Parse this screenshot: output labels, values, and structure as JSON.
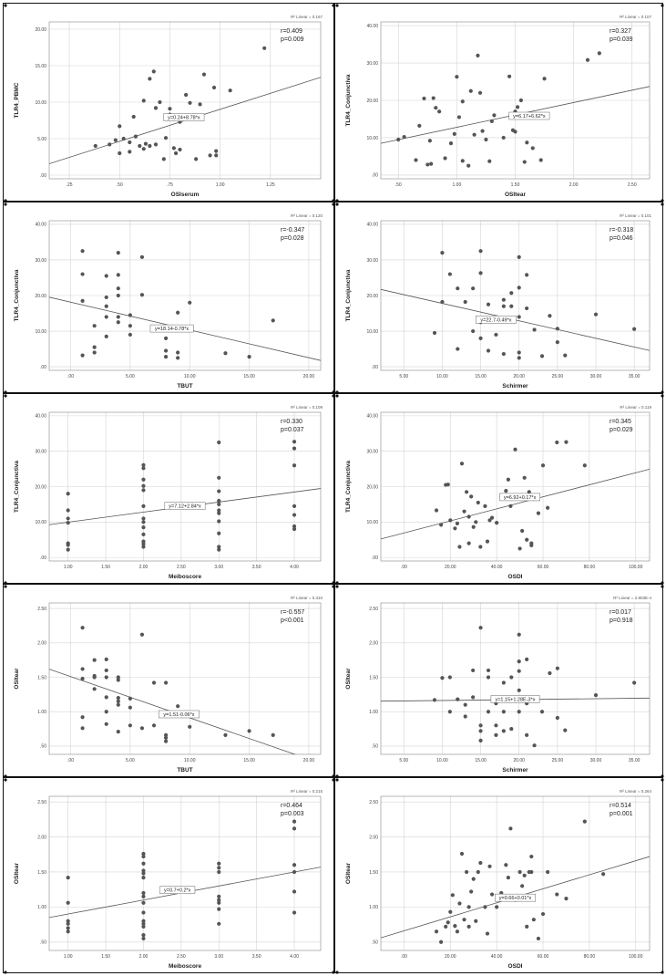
{
  "chart_data": [
    {
      "type": "scatter",
      "xlabel": "OSIserum",
      "ylabel": "TLR4_PBMC",
      "xlim": [
        0.15,
        1.5
      ],
      "ylim": [
        -0.5,
        21
      ],
      "xticks": [
        0.25,
        0.5,
        0.75,
        1.0,
        1.25
      ],
      "xtick_labels": [
        ".25",
        ".50",
        ".75",
        "1.00",
        "1.25"
      ],
      "yticks": [
        0,
        5,
        10,
        15,
        20
      ],
      "ytick_labels": [
        ".00",
        "5.00",
        "10.00",
        "15.00",
        "20.00"
      ],
      "r2_label": "R² Linear = 0.167",
      "stat_r": "r=0.409",
      "stat_p": "p=0.009",
      "equation": "y=0.24+8.78*x",
      "fit": [
        0.24,
        8.78
      ],
      "eq_at": [
        0.82,
        7.8
      ],
      "x": [
        0.38,
        0.45,
        0.48,
        0.5,
        0.5,
        0.52,
        0.55,
        0.55,
        0.57,
        0.58,
        0.6,
        0.62,
        0.62,
        0.63,
        0.65,
        0.65,
        0.67,
        0.68,
        0.68,
        0.7,
        0.72,
        0.73,
        0.75,
        0.75,
        0.77,
        0.78,
        0.8,
        0.8,
        0.82,
        0.83,
        0.85,
        0.88,
        0.9,
        0.92,
        0.95,
        0.97,
        0.98,
        0.98,
        1.05,
        1.22
      ],
      "y": [
        4.0,
        4.2,
        4.8,
        3.0,
        6.7,
        5.0,
        4.5,
        3.2,
        8.0,
        5.3,
        4.0,
        10.2,
        3.6,
        4.3,
        13.2,
        4.0,
        14.2,
        4.2,
        9.2,
        10.0,
        2.2,
        5.1,
        9.1,
        8.3,
        3.7,
        3.0,
        7.3,
        3.5,
        8.0,
        11.0,
        9.9,
        2.2,
        9.7,
        13.8,
        2.7,
        12.0,
        2.7,
        3.3,
        11.6,
        17.4
      ]
    },
    {
      "type": "scatter",
      "xlabel": "OSItear",
      "ylabel": "TLR4_Conjunctiva",
      "xlim": [
        0.35,
        2.65
      ],
      "ylim": [
        -1,
        41
      ],
      "xticks": [
        0.5,
        1.0,
        1.5,
        2.0,
        2.5
      ],
      "xtick_labels": [
        ".50",
        "1.00",
        "1.50",
        "2.00",
        "2.50"
      ],
      "yticks": [
        0,
        10,
        20,
        30,
        40
      ],
      "ytick_labels": [
        ".00",
        "10.00",
        "20.00",
        "30.00",
        "40.00"
      ],
      "r2_label": "R² Linear = 0.107",
      "stat_r": "r=0.327",
      "stat_p": "p=0.039",
      "equation": "y=6.17+6.62*x",
      "fit": [
        6.17,
        6.62
      ],
      "eq_at": [
        1.62,
        15.6
      ],
      "x": [
        0.5,
        0.55,
        0.65,
        0.68,
        0.72,
        0.75,
        0.77,
        0.78,
        0.8,
        0.82,
        0.85,
        0.9,
        0.95,
        0.98,
        1.0,
        1.02,
        1.05,
        1.05,
        1.1,
        1.12,
        1.15,
        1.18,
        1.2,
        1.22,
        1.25,
        1.28,
        1.3,
        1.32,
        1.4,
        1.45,
        1.48,
        1.5,
        1.5,
        1.52,
        1.55,
        1.58,
        1.6,
        1.65,
        1.72,
        1.75,
        2.12,
        2.22
      ],
      "y": [
        9.5,
        10.2,
        4.0,
        13.2,
        20.5,
        2.8,
        9.2,
        3.0,
        20.6,
        18.0,
        17.0,
        4.5,
        8.5,
        11.0,
        26.3,
        15.5,
        3.8,
        19.7,
        2.5,
        22.5,
        10.8,
        32.0,
        22.0,
        11.8,
        9.5,
        3.7,
        14.4,
        16.0,
        10.0,
        26.4,
        12.0,
        11.6,
        17.0,
        18.2,
        20.0,
        3.5,
        8.7,
        7.2,
        4.0,
        25.8,
        30.8,
        32.6
      ]
    },
    {
      "type": "scatter",
      "xlabel": "TBUT",
      "ylabel": "TLR4_Conjunctiva",
      "xlim": [
        -1.8,
        21
      ],
      "ylim": [
        -1,
        41
      ],
      "xticks": [
        0,
        5,
        10,
        15,
        20
      ],
      "xtick_labels": [
        ".00",
        "5.00",
        "10.00",
        "15.00",
        "20.00"
      ],
      "yticks": [
        0,
        10,
        20,
        30,
        40
      ],
      "ytick_labels": [
        ".00",
        "10.00",
        "20.00",
        "30.00",
        "40.00"
      ],
      "r2_label": "R² Linear = 0.120",
      "stat_r": "r=-0.347",
      "stat_p": "p=0.028",
      "equation": "y=18.14-0.78*x",
      "fit": [
        18.14,
        -0.78
      ],
      "eq_at": [
        8.5,
        10.5
      ],
      "x": [
        1,
        1,
        1,
        1,
        2,
        2,
        2,
        3,
        3,
        3,
        3,
        3,
        4,
        4,
        4,
        4,
        4,
        4,
        5,
        5,
        5,
        6,
        6,
        7,
        8,
        8,
        8,
        8,
        9,
        9,
        9,
        10,
        10,
        13,
        15,
        17
      ],
      "y": [
        32.5,
        26.0,
        18.5,
        3.2,
        5.5,
        4.0,
        11.5,
        25.5,
        19.5,
        17.0,
        14.0,
        8.5,
        32.0,
        25.8,
        22.0,
        20.0,
        14.0,
        12.5,
        14.5,
        11.5,
        9.0,
        30.8,
        20.2,
        10.5,
        10.4,
        8.0,
        4.5,
        2.8,
        15.2,
        4.0,
        2.5,
        18.0,
        10.7,
        3.8,
        2.8,
        13.0
      ]
    },
    {
      "type": "scatter",
      "xlabel": "Schirmer",
      "ylabel": "TLR4_Conjunctiva",
      "xlim": [
        2,
        37
      ],
      "ylim": [
        -1,
        41
      ],
      "xticks": [
        5,
        10,
        15,
        20,
        25,
        30,
        35
      ],
      "xtick_labels": [
        "5.00",
        "10.00",
        "15.00",
        "20.00",
        "25.00",
        "30.00",
        "35.00"
      ],
      "yticks": [
        0,
        10,
        20,
        30,
        40
      ],
      "ytick_labels": [
        ".00",
        "10.00",
        "20.00",
        "30.00",
        "40.00"
      ],
      "r2_label": "R² Linear = 0.101",
      "stat_r": "r=-0.318",
      "stat_p": "p=0.046",
      "equation": "y=22.7-0.49*x",
      "fit": [
        22.7,
        -0.49
      ],
      "eq_at": [
        17,
        13
      ],
      "x": [
        9,
        10,
        10,
        11,
        12,
        12,
        13,
        14,
        14,
        15,
        15,
        15,
        15,
        15,
        16,
        16,
        17,
        17,
        18,
        18,
        18,
        19,
        19,
        20,
        20,
        20,
        20,
        20,
        21,
        21,
        22,
        23,
        24,
        25,
        25,
        26,
        30,
        35
      ],
      "y": [
        9.5,
        32.0,
        18.2,
        26.0,
        22.0,
        5.0,
        18.2,
        10.0,
        22.0,
        32.5,
        26.3,
        13.0,
        12.5,
        8.0,
        4.5,
        17.5,
        14.0,
        9.0,
        17.0,
        3.6,
        18.8,
        17.0,
        20.7,
        2.5,
        4.0,
        14.0,
        22.2,
        30.8,
        16.4,
        25.8,
        10.4,
        3.0,
        14.3,
        10.7,
        6.9,
        3.2,
        14.7,
        10.6
      ]
    },
    {
      "type": "scatter",
      "xlabel": "Meiboscore",
      "ylabel": "TLR4_Conjunctiva",
      "xlim": [
        0.75,
        4.35
      ],
      "ylim": [
        -1,
        41
      ],
      "xticks": [
        1.0,
        1.5,
        2.0,
        2.5,
        3.0,
        3.5,
        4.0
      ],
      "xtick_labels": [
        "1.00",
        "1.50",
        "2.00",
        "2.50",
        "3.00",
        "3.50",
        "4.00"
      ],
      "yticks": [
        0,
        10,
        20,
        30,
        40
      ],
      "ytick_labels": [
        ".00",
        "10.00",
        "20.00",
        "30.00",
        "40.00"
      ],
      "r2_label": "R² Linear = 0.109",
      "stat_r": "r=0.330",
      "stat_p": "p=0.037",
      "equation": "y=7.12+2.84*x",
      "fit": [
        7.12,
        2.84
      ],
      "eq_at": [
        2.55,
        14.3
      ],
      "x": [
        1,
        1,
        1,
        1,
        1,
        1,
        1,
        2,
        2,
        2,
        2,
        2,
        2,
        2,
        2,
        2,
        2,
        2,
        2,
        2,
        3,
        3,
        3,
        3,
        3,
        3,
        3,
        3,
        3,
        3,
        3,
        4,
        4,
        4,
        4,
        4,
        4,
        4
      ],
      "y": [
        18.0,
        13.3,
        11.0,
        9.8,
        4.0,
        3.5,
        2.2,
        26.1,
        25.2,
        22.0,
        20.2,
        19.0,
        14.5,
        11.0,
        10.0,
        8.5,
        6.5,
        4.5,
        3.8,
        3.0,
        32.5,
        22.5,
        18.7,
        16.0,
        15.0,
        13.3,
        12.5,
        10.2,
        6.8,
        3.0,
        2.2,
        32.7,
        30.8,
        26.0,
        14.5,
        12.0,
        8.0,
        8.8
      ]
    },
    {
      "type": "scatter",
      "xlabel": "OSDI",
      "ylabel": "TLR4_Conjunctiva",
      "xlim": [
        -10,
        106
      ],
      "ylim": [
        -1,
        41
      ],
      "xticks": [
        0,
        20,
        40,
        60,
        80,
        100
      ],
      "xtick_labels": [
        ".00",
        "20.00",
        "40.00",
        "60.00",
        "80.00",
        "100.00"
      ],
      "yticks": [
        0,
        10,
        20,
        30,
        40
      ],
      "ytick_labels": [
        ".00",
        "10.00",
        "20.00",
        "30.00",
        "40.00"
      ],
      "r2_label": "R² Linear = 0.119",
      "stat_r": "r=0.345",
      "stat_p": "p=0.029",
      "equation": "y=6.92+0.17*x",
      "fit": [
        6.92,
        0.17
      ],
      "eq_at": [
        50,
        16.8
      ],
      "x": [
        14,
        16,
        18,
        19,
        20,
        22,
        23,
        24,
        25,
        26,
        27,
        28,
        28,
        29,
        30,
        31,
        32,
        33,
        35,
        36,
        37,
        38,
        40,
        42,
        44,
        45,
        46,
        48,
        50,
        51,
        52,
        53,
        54,
        55,
        55,
        56,
        58,
        60,
        62,
        66,
        70,
        78
      ],
      "y": [
        13.3,
        9.2,
        20.5,
        20.6,
        10.5,
        8.2,
        9.6,
        3.0,
        26.5,
        13.0,
        18.5,
        11.5,
        4.0,
        17.2,
        8.6,
        10.0,
        15.5,
        3.0,
        14.5,
        4.5,
        10.5,
        11.2,
        9.8,
        17.0,
        18.8,
        22.0,
        14.5,
        30.5,
        2.5,
        7.5,
        22.5,
        5.0,
        18.5,
        3.4,
        4.0,
        16.5,
        12.5,
        26.0,
        14.0,
        32.5,
        32.6,
        26.0
      ]
    },
    {
      "type": "scatter",
      "xlabel": "TBUT",
      "ylabel": "OSItear",
      "xlim": [
        -1.8,
        21
      ],
      "ylim": [
        0.38,
        2.58
      ],
      "xticks": [
        0,
        5,
        10,
        15,
        20
      ],
      "xtick_labels": [
        ".00",
        "5.00",
        "10.00",
        "15.00",
        "20.00"
      ],
      "yticks": [
        0.5,
        1.0,
        1.5,
        2.0,
        2.5
      ],
      "ytick_labels": [
        ".50",
        "1.00",
        "1.50",
        "2.00",
        "2.50"
      ],
      "r2_label": "R² Linear = 0.310",
      "stat_r": "r=-0.557",
      "stat_p": "p<0.001",
      "equation": "y=1.51-0.06*x",
      "fit": [
        1.51,
        -0.06
      ],
      "eq_at": [
        9.1,
        0.95
      ],
      "x": [
        1,
        1,
        1,
        1,
        1,
        2,
        2,
        2,
        2,
        3,
        3,
        3,
        3,
        3,
        3,
        4,
        4,
        4,
        4,
        4,
        4,
        5,
        5,
        5,
        6,
        6,
        7,
        7,
        8,
        8,
        8,
        8,
        8,
        9,
        10,
        13,
        15,
        17
      ],
      "y": [
        2.22,
        1.62,
        1.48,
        0.92,
        0.76,
        1.75,
        1.52,
        1.5,
        1.33,
        1.76,
        1.6,
        1.5,
        1.21,
        1.0,
        0.82,
        1.5,
        1.46,
        1.2,
        1.15,
        1.1,
        0.71,
        1.19,
        1.06,
        0.8,
        2.12,
        0.76,
        1.42,
        0.8,
        1.42,
        0.95,
        0.66,
        0.62,
        0.57,
        1.08,
        0.78,
        0.66,
        0.72,
        0.66
      ]
    },
    {
      "type": "scatter",
      "xlabel": "Schirmer",
      "ylabel": "OSItear",
      "xlim": [
        2,
        37
      ],
      "ylim": [
        0.38,
        2.58
      ],
      "xticks": [
        5,
        10,
        15,
        20,
        25,
        30,
        35
      ],
      "xtick_labels": [
        "5.00",
        "10.00",
        "15.00",
        "20.00",
        "25.00",
        "30.00",
        "35.00"
      ],
      "yticks": [
        0.5,
        1.0,
        1.5,
        2.0,
        2.5
      ],
      "ytick_labels": [
        ".50",
        "1.00",
        "1.50",
        "2.00",
        "2.50"
      ],
      "r2_label": "R² Linear = 2.803E-4",
      "stat_r": "r=0.017",
      "stat_p": "p=0.918",
      "equation": "y=1.15+1.28E-3*x",
      "fit": [
        1.15,
        0.00128
      ],
      "eq_at": [
        19.5,
        1.17
      ],
      "x": [
        9,
        10,
        11,
        11,
        12,
        13,
        13,
        14,
        14,
        15,
        15,
        15,
        15,
        16,
        16,
        16,
        17,
        17,
        17,
        18,
        18,
        18,
        19,
        19,
        20,
        20,
        20,
        20,
        20,
        21,
        21,
        21,
        22,
        23,
        24,
        25,
        25,
        26,
        30,
        35
      ],
      "y": [
        1.17,
        1.49,
        1.0,
        1.5,
        1.18,
        0.93,
        1.1,
        1.21,
        1.6,
        0.58,
        0.72,
        0.8,
        2.22,
        1.0,
        1.5,
        1.6,
        0.8,
        1.12,
        0.66,
        1.0,
        0.72,
        1.42,
        0.75,
        1.5,
        1.73,
        2.12,
        1.59,
        1.31,
        1.0,
        0.66,
        1.76,
        1.12,
        0.51,
        1.0,
        1.56,
        0.91,
        1.63,
        0.73,
        1.24,
        1.42
      ]
    },
    {
      "type": "scatter",
      "xlabel": "Meiboscore",
      "ylabel": "OSItear",
      "xlim": [
        0.75,
        4.35
      ],
      "ylim": [
        0.38,
        2.58
      ],
      "xticks": [
        1.0,
        1.5,
        2.0,
        2.5,
        3.0,
        3.5,
        4.0
      ],
      "xtick_labels": [
        "1.00",
        "1.50",
        "2.00",
        "2.50",
        "3.00",
        "3.50",
        "4.00"
      ],
      "yticks": [
        0.5,
        1.0,
        1.5,
        2.0,
        2.5
      ],
      "ytick_labels": [
        ".50",
        "1.00",
        "1.50",
        "2.00",
        "2.50"
      ],
      "r2_label": "R² Linear = 0.215",
      "stat_r": "r=0.464",
      "stat_p": "p=0.003",
      "equation": "y=0.7+0.2*x",
      "fit": [
        0.7,
        0.2
      ],
      "eq_at": [
        2.45,
        1.23
      ],
      "x": [
        1,
        1,
        1,
        1,
        1,
        1,
        2,
        2,
        2,
        2,
        2,
        2,
        2,
        2,
        2,
        2,
        2,
        2,
        2,
        2,
        2,
        3,
        3,
        3,
        3,
        3,
        3,
        3,
        3,
        4,
        4,
        4,
        4,
        4,
        4
      ],
      "y": [
        1.42,
        1.06,
        0.8,
        0.76,
        0.7,
        0.65,
        1.76,
        1.72,
        1.62,
        1.52,
        1.48,
        1.42,
        1.2,
        1.15,
        1.06,
        0.92,
        0.8,
        0.76,
        0.72,
        0.6,
        0.55,
        1.62,
        1.56,
        1.5,
        1.15,
        1.1,
        1.06,
        0.97,
        0.76,
        2.22,
        2.12,
        1.6,
        1.5,
        1.22,
        0.92
      ]
    },
    {
      "type": "scatter",
      "xlabel": "OSDI",
      "ylabel": "OSItear",
      "xlim": [
        -10,
        106
      ],
      "ylim": [
        0.38,
        2.58
      ],
      "xticks": [
        0,
        20,
        40,
        60,
        80,
        100
      ],
      "xtick_labels": [
        ".00",
        "20.00",
        "40.00",
        "60.00",
        "80.00",
        "100.00"
      ],
      "yticks": [
        0.5,
        1.0,
        1.5,
        2.0,
        2.5
      ],
      "ytick_labels": [
        ".50",
        "1.00",
        "1.50",
        "2.00",
        "2.50"
      ],
      "r2_label": "R² Linear = 0.264",
      "stat_r": "r=0.514",
      "stat_p": "p=0.001",
      "equation": "y=0.66+0.01*x",
      "fit": [
        0.66,
        0.01
      ],
      "eq_at": [
        48,
        1.12
      ],
      "x": [
        14,
        16,
        18,
        19,
        20,
        21,
        22,
        23,
        24,
        25,
        26,
        27,
        28,
        28,
        29,
        30,
        31,
        32,
        33,
        35,
        36,
        37,
        38,
        40,
        42,
        44,
        45,
        46,
        48,
        50,
        51,
        52,
        53,
        54,
        55,
        55,
        56,
        58,
        60,
        62,
        66,
        70,
        78,
        86
      ],
      "y": [
        0.65,
        0.5,
        0.72,
        0.78,
        0.93,
        1.17,
        0.73,
        0.65,
        1.05,
        1.76,
        0.82,
        1.5,
        1.0,
        0.72,
        1.22,
        1.4,
        0.8,
        1.5,
        1.63,
        1.0,
        0.62,
        1.58,
        1.18,
        1.0,
        1.2,
        1.6,
        1.42,
        2.12,
        1.1,
        1.5,
        1.3,
        1.45,
        0.72,
        1.5,
        1.72,
        1.5,
        0.82,
        0.55,
        0.9,
        1.5,
        1.18,
        1.12,
        2.22,
        1.47
      ]
    }
  ]
}
